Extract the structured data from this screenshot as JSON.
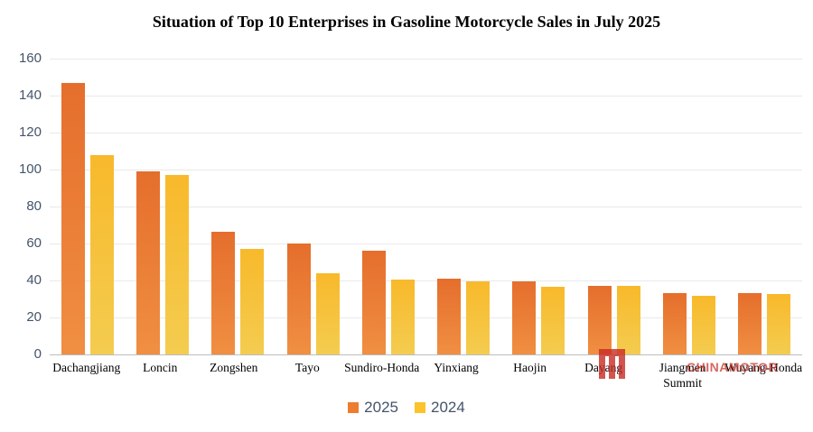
{
  "title": "Situation of Top 10 Enterprises in Gasoline Motorcycle Sales in July 2025",
  "watermark": {
    "text": "CHINAMOTOR",
    "color": "#c92b24"
  },
  "legend": [
    {
      "label": "2025",
      "color": "#ed7d31"
    },
    {
      "label": "2024",
      "color": "#fcc32c"
    }
  ],
  "chart_data": {
    "type": "bar",
    "title": "Situation of Top 10 Enterprises in Gasoline Motorcycle Sales in July 2025",
    "categories": [
      "Dachangjiang",
      "Loncin",
      "Zongshen",
      "Tayo",
      "Sundiro-Honda",
      "Yinxiang",
      "Haojin",
      "Dayang",
      "Jiangmen Summit",
      "Wuyang-Honda"
    ],
    "series": [
      {
        "name": "2025",
        "color": "#ed7d31",
        "values": [
          147,
          99,
          66.5,
          60,
          56,
          41,
          39.5,
          37,
          33,
          33
        ]
      },
      {
        "name": "2024",
        "color": "#fcc32c",
        "values": [
          108,
          97,
          57,
          44,
          40.5,
          39.5,
          36.5,
          37,
          31.5,
          32.5
        ]
      }
    ],
    "xlabel": "",
    "ylabel": "",
    "ylim": [
      0,
      160
    ],
    "yticks": [
      0,
      20,
      40,
      60,
      80,
      100,
      120,
      140,
      160
    ],
    "grid": true,
    "legend_position": "bottom"
  }
}
